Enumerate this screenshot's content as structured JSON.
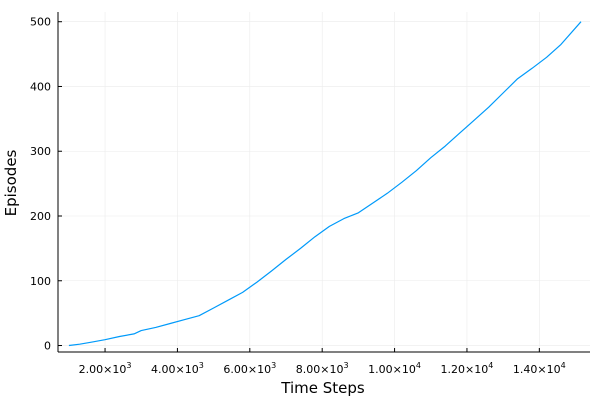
{
  "chart_data": {
    "type": "line",
    "title": "",
    "xlabel": "Time Steps",
    "ylabel": "Episodes",
    "xlim": [
      700,
      15400
    ],
    "ylim": [
      -10,
      515
    ],
    "xticks": [
      {
        "value": 2000,
        "mantissa": "2.00×10",
        "exp": "3"
      },
      {
        "value": 4000,
        "mantissa": "4.00×10",
        "exp": "3"
      },
      {
        "value": 6000,
        "mantissa": "6.00×10",
        "exp": "3"
      },
      {
        "value": 8000,
        "mantissa": "8.00×10",
        "exp": "3"
      },
      {
        "value": 10000,
        "mantissa": "1.00×10",
        "exp": "4"
      },
      {
        "value": 12000,
        "mantissa": "1.20×10",
        "exp": "4"
      },
      {
        "value": 14000,
        "mantissa": "1.40×10",
        "exp": "4"
      }
    ],
    "yticks": [
      0,
      100,
      200,
      300,
      400,
      500
    ],
    "grid": true,
    "legend": false,
    "colors": {
      "line": "#009AFA",
      "axis": "#000000",
      "grid": "#EBEBEB"
    },
    "series": [
      {
        "x": [
          1000,
          1300,
          1600,
          2000,
          2400,
          2800,
          3000,
          3400,
          3800,
          4200,
          4600,
          5000,
          5400,
          5800,
          6200,
          6600,
          7000,
          7400,
          7800,
          8200,
          8600,
          9000,
          9400,
          9800,
          10200,
          10600,
          11000,
          11400,
          11800,
          12200,
          12600,
          13000,
          13400,
          13800,
          14200,
          14600,
          15150
        ],
        "y": [
          0,
          2,
          5,
          9,
          14,
          18,
          23,
          28,
          34,
          40,
          46,
          58,
          70,
          82,
          98,
          115,
          133,
          150,
          168,
          184,
          196,
          205,
          220,
          235,
          252,
          270,
          290,
          308,
          328,
          348,
          368,
          390,
          412,
          428,
          445,
          465,
          500
        ]
      }
    ]
  }
}
